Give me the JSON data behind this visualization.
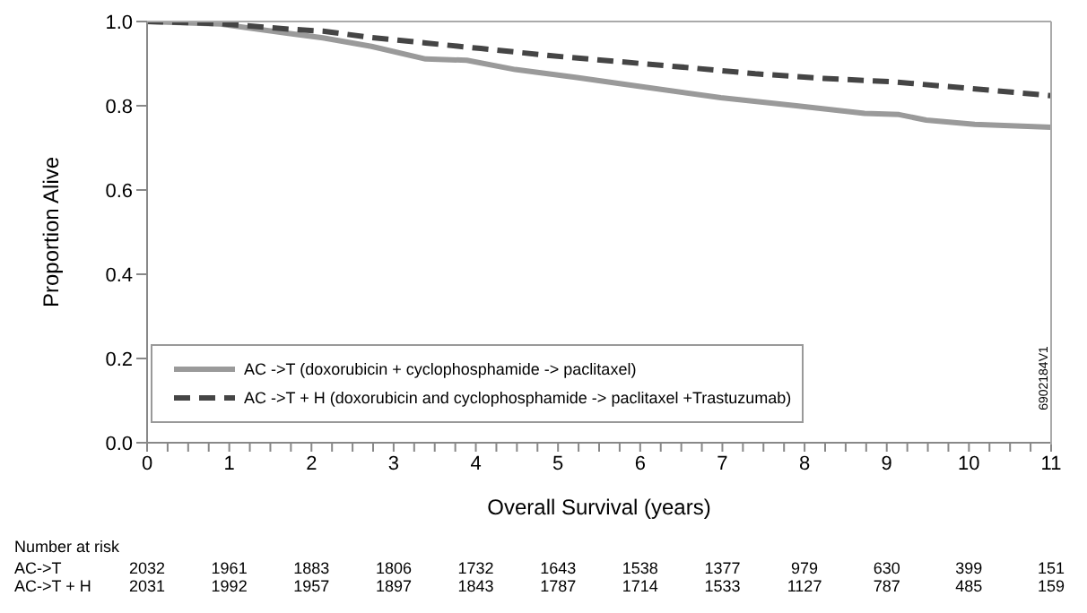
{
  "chart_data": {
    "type": "line",
    "xlabel": "Overall Survival (years)",
    "ylabel": "Proportion Alive",
    "xlim": [
      0,
      11
    ],
    "xticks": [
      0,
      {
        "value": 0.25,
        "label": null
      },
      {
        "value": 0.5,
        "label": null
      },
      {
        "value": 0.75,
        "label": null
      },
      1,
      {
        "value": 1.25,
        "label": null
      },
      {
        "value": 1.5,
        "label": null
      },
      {
        "value": 1.75,
        "label": null
      },
      2,
      {
        "value": 2.25,
        "label": null
      },
      {
        "value": 2.5,
        "label": null
      },
      {
        "value": 2.75,
        "label": null
      },
      3,
      {
        "value": 3.25,
        "label": null
      },
      {
        "value": 3.5,
        "label": null
      },
      {
        "value": 3.75,
        "label": null
      },
      4,
      {
        "value": 4.25,
        "label": null
      },
      {
        "value": 4.5,
        "label": null
      },
      {
        "value": 4.75,
        "label": null
      },
      5,
      {
        "value": 5.25,
        "label": null
      },
      {
        "value": 5.5,
        "label": null
      },
      {
        "value": 5.75,
        "label": null
      },
      6,
      {
        "value": 6.25,
        "label": null
      },
      {
        "value": 6.5,
        "label": null
      },
      {
        "value": 6.75,
        "label": null
      },
      7,
      {
        "value": 7.25,
        "label": null
      },
      {
        "value": 7.5,
        "label": null
      },
      {
        "value": 7.75,
        "label": null
      },
      8,
      {
        "value": 8.25,
        "label": null
      },
      {
        "value": 8.5,
        "label": null
      },
      {
        "value": 8.75,
        "label": null
      },
      9,
      {
        "value": 9.25,
        "label": null
      },
      {
        "value": 9.5,
        "label": null
      },
      {
        "value": 9.75,
        "label": null
      },
      10,
      {
        "value": 10.25,
        "label": null
      },
      {
        "value": 10.5,
        "label": null
      },
      {
        "value": 10.75,
        "label": null
      },
      11
    ],
    "ylim": [
      0,
      1
    ],
    "yticks": [
      {
        "value": 0,
        "label": "0.0"
      },
      {
        "value": 0.2,
        "label": "0.2"
      },
      {
        "value": 0.4,
        "label": "0.4"
      },
      {
        "value": 0.6,
        "label": "0.6"
      },
      {
        "value": 0.8,
        "label": "0.8"
      },
      {
        "value": 1,
        "label": "1.0"
      }
    ],
    "legend": "bottom left",
    "marker": "none",
    "series": [
      {
        "name": "AC ->T (doxorubicin + cyclophosphamide -> paclitaxel)",
        "color": "#9a9a9a",
        "line_style": "solid",
        "x": [
          0,
          0.89,
          1.72,
          2.14,
          2.73,
          3.39,
          3.89,
          4.48,
          5.23,
          5.73,
          6.98,
          7.9,
          8.73,
          9.15,
          9.48,
          10.07,
          11
        ],
        "values": [
          1.0,
          0.994,
          0.972,
          0.961,
          0.941,
          0.911,
          0.908,
          0.886,
          0.867,
          0.853,
          0.819,
          0.8,
          0.782,
          0.779,
          0.766,
          0.756,
          0.749
        ]
      },
      {
        "name": "AC ->T + H (doxorubicin and cyclophosphamide -> paclitaxel +Trastuzumab)",
        "color": "#454545",
        "line_style": "dashed",
        "x": [
          0,
          0.89,
          1.72,
          2.14,
          2.73,
          3.39,
          4.06,
          4.9,
          5.73,
          6.56,
          7.4,
          8.23,
          9.07,
          9.9,
          11
        ],
        "values": [
          1.0,
          0.995,
          0.982,
          0.977,
          0.962,
          0.949,
          0.936,
          0.919,
          0.905,
          0.891,
          0.876,
          0.865,
          0.857,
          0.843,
          0.824
        ]
      }
    ],
    "annotations": [
      "Number at risk",
      "AC->T",
      "2032",
      "1961",
      "1883",
      "1806",
      "1732",
      "1643",
      "1538",
      "1377",
      "979",
      "630",
      "399",
      "151",
      "AC->T + H",
      "2031",
      "1992",
      "1957",
      "1897",
      "1843",
      "1787",
      "1714",
      "1533",
      "1127",
      "787",
      "485",
      "159",
      "6902184V1"
    ]
  }
}
